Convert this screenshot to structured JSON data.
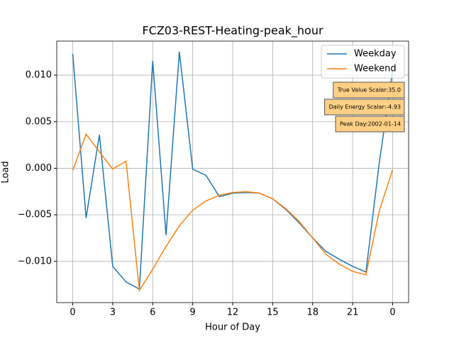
{
  "chart_data": {
    "type": "line",
    "title": "FCZ03-REST-Heating-peak_hour",
    "x_label": "Hour of Day",
    "y_label": "Load",
    "x": [
      0,
      1,
      2,
      3,
      4,
      5,
      6,
      7,
      8,
      9,
      10,
      11,
      12,
      13,
      14,
      15,
      16,
      17,
      18,
      19,
      20,
      21,
      22,
      23,
      24
    ],
    "series": [
      {
        "name": "Weekday",
        "color": "#1f77b4",
        "values": [
          0.01229,
          -0.00534,
          0.00359,
          -0.01053,
          -0.01221,
          -0.01298,
          0.01153,
          -0.00718,
          0.01252,
          -0.0001,
          -0.00076,
          -0.00305,
          -0.00267,
          -0.0026,
          -0.00267,
          -0.00328,
          -0.00443,
          -0.00588,
          -0.00748,
          -0.00893,
          -0.00977,
          -0.01053,
          -0.01115,
          0.0006,
          0.0105
        ]
      },
      {
        "name": "Weekend",
        "color": "#ff7f0e",
        "values": [
          -0.00023,
          0.00366,
          0.00176,
          -8e-05,
          0.00076,
          -0.01313,
          -0.01084,
          -0.0084,
          -0.00618,
          -0.0045,
          -0.00351,
          -0.0029,
          -0.0026,
          -0.00252,
          -0.00267,
          -0.00328,
          -0.00435,
          -0.00573,
          -0.00748,
          -0.00924,
          -0.0103,
          -0.01107,
          -0.01145,
          -0.00458,
          -0.00015
        ]
      }
    ],
    "xlim": [
      -1.2,
      25.2
    ],
    "xticks": [
      0,
      3,
      6,
      9,
      12,
      15,
      18,
      21,
      {
        "value": 24,
        "label": "0"
      }
    ],
    "ylim": [
      -0.01443,
      0.01366
    ],
    "yticks": [
      {
        "value": -0.01,
        "label": "−0.010"
      },
      {
        "value": -0.005,
        "label": "−0.005"
      },
      {
        "value": 0,
        "label": "0.000"
      },
      0.005,
      {
        "value": 0.01,
        "label": "0.010"
      }
    ],
    "grid": true,
    "legend": "upper right",
    "annotations": [
      "True Value Scalar:35.0",
      "Daily Energy Scalar:-4.93",
      "Peak Day:2002-01-14"
    ],
    "annotation_color": "#fdd085"
  }
}
